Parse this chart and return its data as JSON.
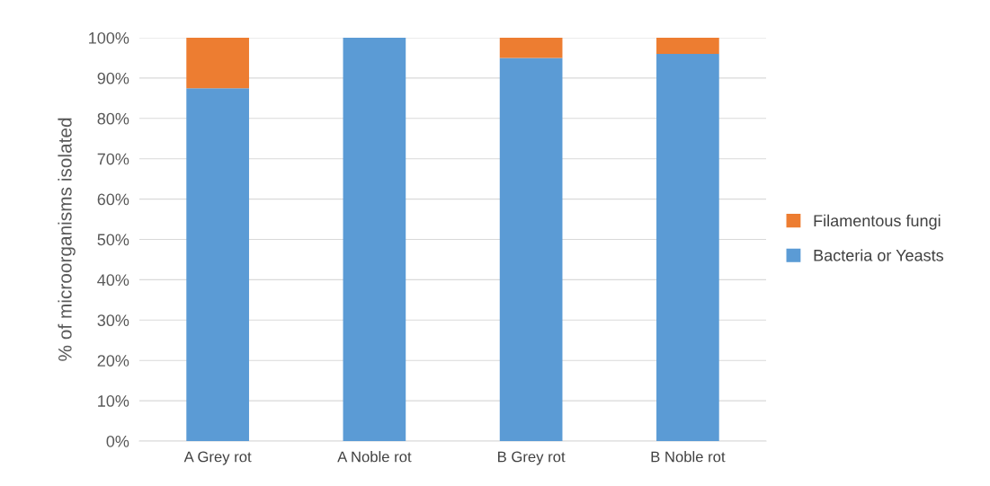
{
  "chart_data": {
    "type": "bar",
    "stacked": true,
    "ylabel": "% of microorganisms isolated",
    "categories": [
      "A Grey rot",
      "A Noble rot",
      "B Grey rot",
      "B Noble rot"
    ],
    "series": [
      {
        "name": "Bacteria or Yeasts",
        "color": "#5b9bd5",
        "values": [
          87.5,
          100,
          95,
          96
        ]
      },
      {
        "name": "Filamentous fungi",
        "color": "#ed7d31",
        "values": [
          12.5,
          0,
          5,
          4
        ]
      }
    ],
    "ylim": [
      0,
      100
    ],
    "yticks": [
      {
        "value": 0,
        "label": "0%"
      },
      {
        "value": 10,
        "label": "10%"
      },
      {
        "value": 20,
        "label": "20%"
      },
      {
        "value": 30,
        "label": "30%"
      },
      {
        "value": 40,
        "label": "40%"
      },
      {
        "value": 50,
        "label": "50%"
      },
      {
        "value": 60,
        "label": "60%"
      },
      {
        "value": 70,
        "label": "70%"
      },
      {
        "value": 80,
        "label": "80%"
      },
      {
        "value": 90,
        "label": "90%"
      },
      {
        "value": 100,
        "label": "100%"
      }
    ],
    "grid": "y",
    "legend": "right"
  }
}
